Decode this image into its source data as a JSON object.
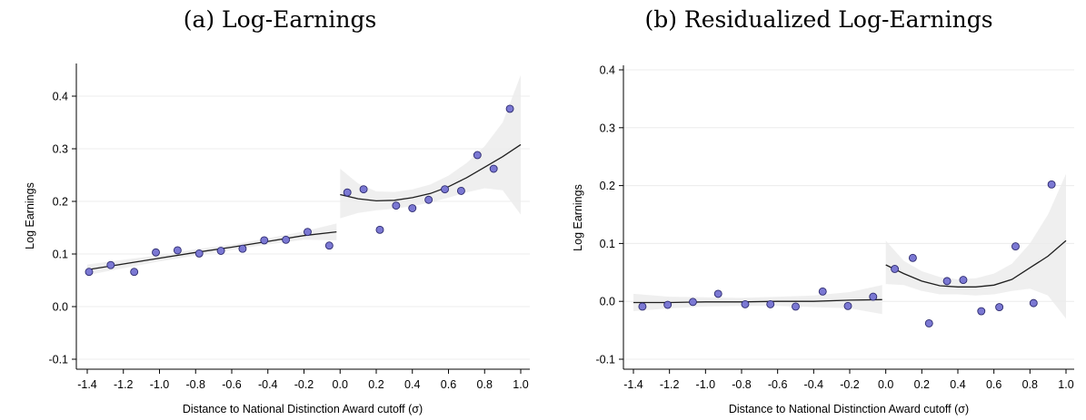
{
  "chart_data": [
    {
      "type": "scatter",
      "title": "(a) Log-Earnings",
      "xlabel": "Distance to National Distinction Award cutoff (σ)",
      "ylabel": "Log Earnings",
      "xlim": [
        -1.4,
        1.0
      ],
      "ylim": [
        -0.1,
        0.42
      ],
      "xticks": [
        "-1.4",
        "-1.2",
        "-1.0",
        "-0.8",
        "-0.6",
        "-0.4",
        "-0.2",
        "0.0",
        "0.2",
        "0.4",
        "0.6",
        "0.8",
        "1.0"
      ],
      "yticks": [
        "-0.1",
        "0.0",
        "0.1",
        "0.2",
        "0.3",
        "0.4"
      ],
      "grid": true,
      "cutoff": 0.0,
      "points": [
        {
          "x": -1.39,
          "y": 0.066
        },
        {
          "x": -1.27,
          "y": 0.079
        },
        {
          "x": -1.14,
          "y": 0.066
        },
        {
          "x": -1.02,
          "y": 0.103
        },
        {
          "x": -0.9,
          "y": 0.107
        },
        {
          "x": -0.78,
          "y": 0.101
        },
        {
          "x": -0.66,
          "y": 0.106
        },
        {
          "x": -0.54,
          "y": 0.11
        },
        {
          "x": -0.42,
          "y": 0.126
        },
        {
          "x": -0.3,
          "y": 0.127
        },
        {
          "x": -0.18,
          "y": 0.142
        },
        {
          "x": -0.06,
          "y": 0.116
        },
        {
          "x": 0.04,
          "y": 0.217
        },
        {
          "x": 0.13,
          "y": 0.223
        },
        {
          "x": 0.22,
          "y": 0.146
        },
        {
          "x": 0.31,
          "y": 0.192
        },
        {
          "x": 0.4,
          "y": 0.187
        },
        {
          "x": 0.49,
          "y": 0.203
        },
        {
          "x": 0.58,
          "y": 0.223
        },
        {
          "x": 0.67,
          "y": 0.22
        },
        {
          "x": 0.76,
          "y": 0.288
        },
        {
          "x": 0.85,
          "y": 0.262
        },
        {
          "x": 0.94,
          "y": 0.376
        }
      ],
      "fit_left": {
        "x": [
          -1.4,
          -1.2,
          -1.0,
          -0.8,
          -0.6,
          -0.4,
          -0.2,
          -0.02
        ],
        "y": [
          0.07,
          0.081,
          0.092,
          0.103,
          0.113,
          0.124,
          0.135,
          0.142
        ],
        "ci_lower": [
          0.06,
          0.073,
          0.086,
          0.097,
          0.108,
          0.118,
          0.127,
          0.126
        ],
        "ci_upper": [
          0.08,
          0.089,
          0.098,
          0.109,
          0.118,
          0.13,
          0.143,
          0.158
        ]
      },
      "fit_right": {
        "x": [
          0.0,
          0.1,
          0.2,
          0.3,
          0.4,
          0.5,
          0.6,
          0.7,
          0.8,
          0.9,
          1.0
        ],
        "y": [
          0.213,
          0.205,
          0.201,
          0.202,
          0.207,
          0.215,
          0.228,
          0.245,
          0.265,
          0.285,
          0.308
        ],
        "ci_lower": [
          0.168,
          0.178,
          0.183,
          0.186,
          0.191,
          0.198,
          0.207,
          0.217,
          0.225,
          0.221,
          0.175
        ],
        "ci_upper": [
          0.262,
          0.234,
          0.219,
          0.218,
          0.223,
          0.232,
          0.249,
          0.273,
          0.305,
          0.35,
          0.44
        ]
      }
    },
    {
      "type": "scatter",
      "title": "(b) Residualized Log-Earnings",
      "xlabel": "Distance to National Distinction Award cutoff (σ)",
      "ylabel": "Log Earnings",
      "xlim": [
        -1.4,
        1.0
      ],
      "ylim": [
        -0.1,
        0.41
      ],
      "xticks": [
        "-1.4",
        "-1.2",
        "-1.0",
        "-0.8",
        "-0.6",
        "-0.4",
        "-0.2",
        "0.0",
        "0.2",
        "0.4",
        "0.6",
        "0.8",
        "1.0"
      ],
      "yticks": [
        "-0.1",
        "0.0",
        "0.1",
        "0.2",
        "0.3",
        "0.4"
      ],
      "grid": true,
      "cutoff": 0.0,
      "points": [
        {
          "x": -1.35,
          "y": -0.009
        },
        {
          "x": -1.21,
          "y": -0.006
        },
        {
          "x": -1.07,
          "y": -0.001
        },
        {
          "x": -0.93,
          "y": 0.013
        },
        {
          "x": -0.78,
          "y": -0.005
        },
        {
          "x": -0.64,
          "y": -0.005
        },
        {
          "x": -0.5,
          "y": -0.009
        },
        {
          "x": -0.35,
          "y": 0.017
        },
        {
          "x": -0.21,
          "y": -0.008
        },
        {
          "x": -0.07,
          "y": 0.008
        },
        {
          "x": 0.05,
          "y": 0.056
        },
        {
          "x": 0.15,
          "y": 0.075
        },
        {
          "x": 0.24,
          "y": -0.038
        },
        {
          "x": 0.34,
          "y": 0.035
        },
        {
          "x": 0.43,
          "y": 0.037
        },
        {
          "x": 0.53,
          "y": -0.017
        },
        {
          "x": 0.63,
          "y": -0.01
        },
        {
          "x": 0.72,
          "y": 0.095
        },
        {
          "x": 0.82,
          "y": -0.003
        },
        {
          "x": 0.92,
          "y": 0.202
        }
      ],
      "fit_left": {
        "x": [
          -1.4,
          -1.2,
          -1.0,
          -0.8,
          -0.6,
          -0.4,
          -0.2,
          -0.02
        ],
        "y": [
          -0.002,
          -0.002,
          -0.001,
          -0.001,
          0.0,
          0.0,
          0.002,
          0.003
        ],
        "ci_lower": [
          -0.017,
          -0.012,
          -0.009,
          -0.008,
          -0.008,
          -0.01,
          -0.012,
          -0.022
        ],
        "ci_upper": [
          0.013,
          0.008,
          0.007,
          0.006,
          0.008,
          0.01,
          0.016,
          0.028
        ]
      },
      "fit_right": {
        "x": [
          0.0,
          0.1,
          0.2,
          0.3,
          0.4,
          0.5,
          0.6,
          0.7,
          0.8,
          0.9,
          1.0
        ],
        "y": [
          0.063,
          0.048,
          0.035,
          0.027,
          0.025,
          0.025,
          0.028,
          0.038,
          0.058,
          0.078,
          0.105
        ],
        "ci_lower": [
          0.03,
          0.028,
          0.018,
          0.012,
          0.012,
          0.01,
          0.012,
          0.018,
          0.022,
          0.01,
          -0.03
        ],
        "ci_upper": [
          0.105,
          0.07,
          0.052,
          0.042,
          0.038,
          0.04,
          0.048,
          0.065,
          0.1,
          0.15,
          0.22
        ]
      }
    }
  ]
}
